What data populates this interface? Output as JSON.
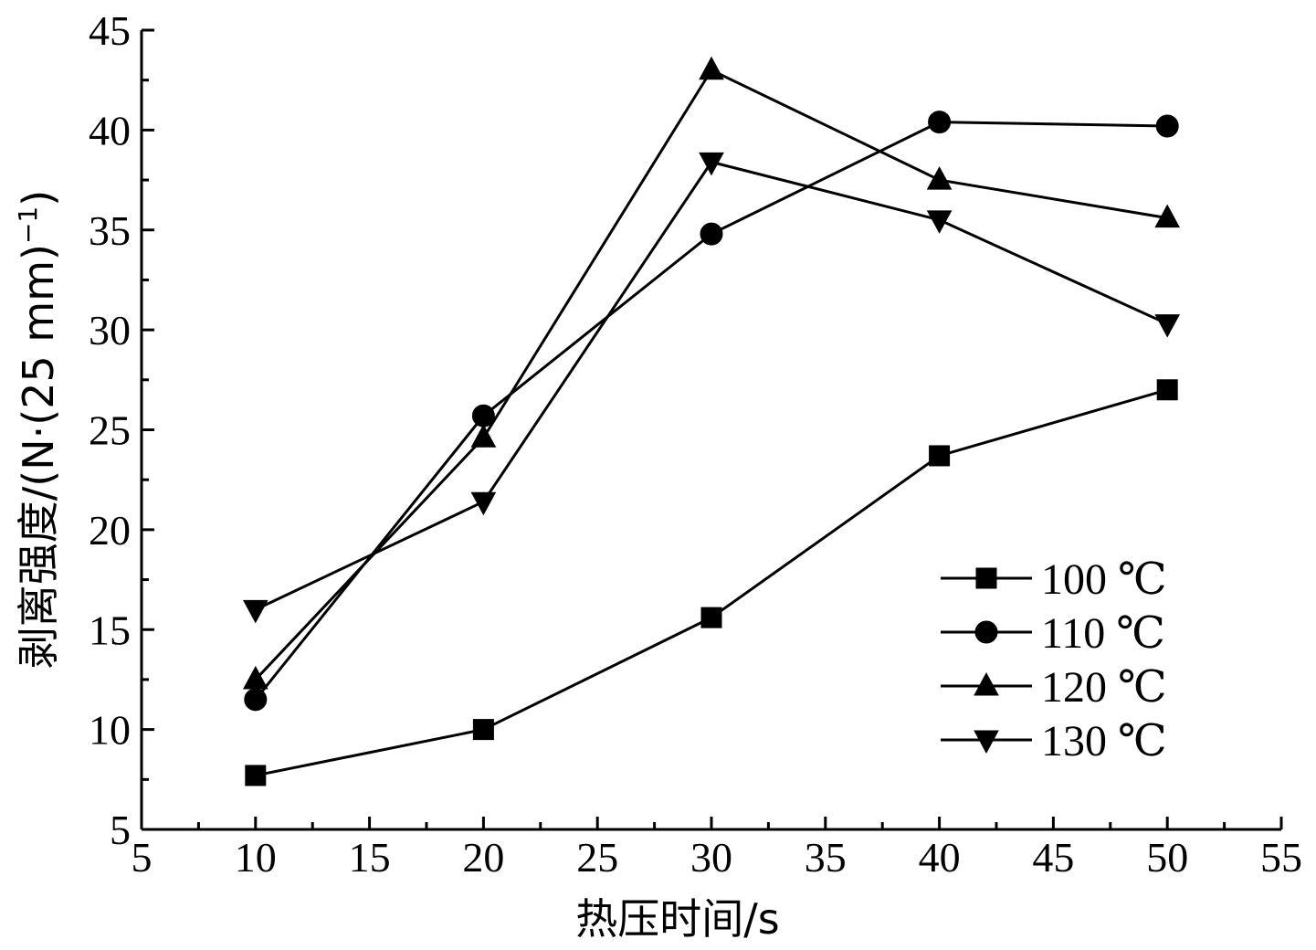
{
  "chart_data": {
    "type": "line",
    "title": "",
    "xlabel": "热压时间/s",
    "ylabel_main": "剥离强度/(N·(25 mm)",
    "ylabel_sup": "−1",
    "ylabel_close": ")",
    "xlim": [
      5,
      55
    ],
    "ylim": [
      5,
      45
    ],
    "x_ticks": [
      5,
      10,
      15,
      20,
      25,
      30,
      35,
      40,
      45,
      50,
      55
    ],
    "y_ticks": [
      5,
      10,
      15,
      20,
      25,
      30,
      35,
      40,
      45
    ],
    "x_tick_labels": [
      "5",
      "10",
      "15",
      "20",
      "25",
      "30",
      "35",
      "40",
      "45",
      "50",
      "55"
    ],
    "y_tick_labels": [
      "5",
      "10",
      "15",
      "20",
      "25",
      "30",
      "35",
      "40",
      "45"
    ],
    "x": [
      10,
      20,
      30,
      40,
      50
    ],
    "grid": false,
    "legend_position": "bottom-right",
    "color": "#000000",
    "series": [
      {
        "name": "100 ℃",
        "marker": "square",
        "values": [
          7.7,
          10.0,
          15.6,
          23.7,
          27.0
        ]
      },
      {
        "name": "110 ℃",
        "marker": "circle",
        "values": [
          11.5,
          25.7,
          34.8,
          40.4,
          40.2
        ]
      },
      {
        "name": "120 ℃",
        "marker": "triangle-up",
        "values": [
          12.5,
          24.6,
          43.0,
          37.5,
          35.6
        ]
      },
      {
        "name": "130 ℃",
        "marker": "triangle-down",
        "values": [
          16.0,
          21.4,
          38.4,
          35.5,
          30.3
        ]
      }
    ]
  }
}
